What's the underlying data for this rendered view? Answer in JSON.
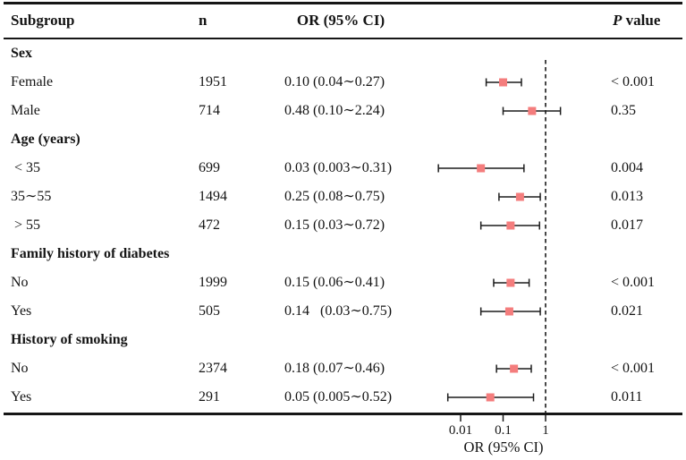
{
  "table": {
    "headers": {
      "subgroup": "Subgroup",
      "n": "n",
      "or_ci": "OR (95% CI)",
      "p_italic": "P",
      "p_rest": " value"
    }
  },
  "chart_data": {
    "type": "forest",
    "x_axis": {
      "scale": "log",
      "ticks": [
        0.01,
        0.1,
        1
      ],
      "tick_labels": [
        "0.01",
        "0.1",
        "1"
      ],
      "label": "OR (95% CI)",
      "ref_line": 1,
      "range": [
        0.003,
        3
      ]
    },
    "marker_color": "#f47d7d",
    "line_color": "#1c1c1c",
    "groups": [
      {
        "label": "Sex",
        "rows": [
          {
            "label": "Female",
            "n": "1951",
            "or": 0.1,
            "ci_low": 0.04,
            "ci_high": 0.27,
            "or_text": "0.10 (0.04∼0.27)",
            "p": "< 0.001"
          },
          {
            "label": "Male",
            "n": "714",
            "or": 0.48,
            "ci_low": 0.1,
            "ci_high": 2.24,
            "or_text": "0.48 (0.10∼2.24)",
            "p": "0.35"
          }
        ]
      },
      {
        "label": "Age (years)",
        "rows": [
          {
            "label": " < 35",
            "n": "699",
            "or": 0.03,
            "ci_low": 0.003,
            "ci_high": 0.31,
            "or_text": "0.03 (0.003∼0.31)",
            "p": "0.004"
          },
          {
            "label": "35∼55",
            "n": "1494",
            "or": 0.25,
            "ci_low": 0.08,
            "ci_high": 0.75,
            "or_text": "0.25 (0.08∼0.75)",
            "p": "0.013"
          },
          {
            "label": " > 55",
            "n": "472",
            "or": 0.15,
            "ci_low": 0.03,
            "ci_high": 0.72,
            "or_text": "0.15 (0.03∼0.72)",
            "p": "0.017"
          }
        ]
      },
      {
        "label": "Family history of diabetes",
        "rows": [
          {
            "label": "No",
            "n": "1999",
            "or": 0.15,
            "ci_low": 0.06,
            "ci_high": 0.41,
            "or_text": "0.15 (0.06∼0.41)",
            "p": "< 0.001"
          },
          {
            "label": "Yes",
            "n": "505",
            "or": 0.14,
            "ci_low": 0.03,
            "ci_high": 0.75,
            "or_text": "0.14   (0.03∼0.75)",
            "p": "0.021"
          }
        ]
      },
      {
        "label": "History of smoking",
        "rows": [
          {
            "label": "No",
            "n": "2374",
            "or": 0.18,
            "ci_low": 0.07,
            "ci_high": 0.46,
            "or_text": "0.18 (0.07∼0.46)",
            "p": "< 0.001"
          },
          {
            "label": "Yes",
            "n": "291",
            "or": 0.05,
            "ci_low": 0.005,
            "ci_high": 0.52,
            "or_text": "0.05 (0.005∼0.52)",
            "p": "0.011"
          }
        ]
      }
    ]
  }
}
